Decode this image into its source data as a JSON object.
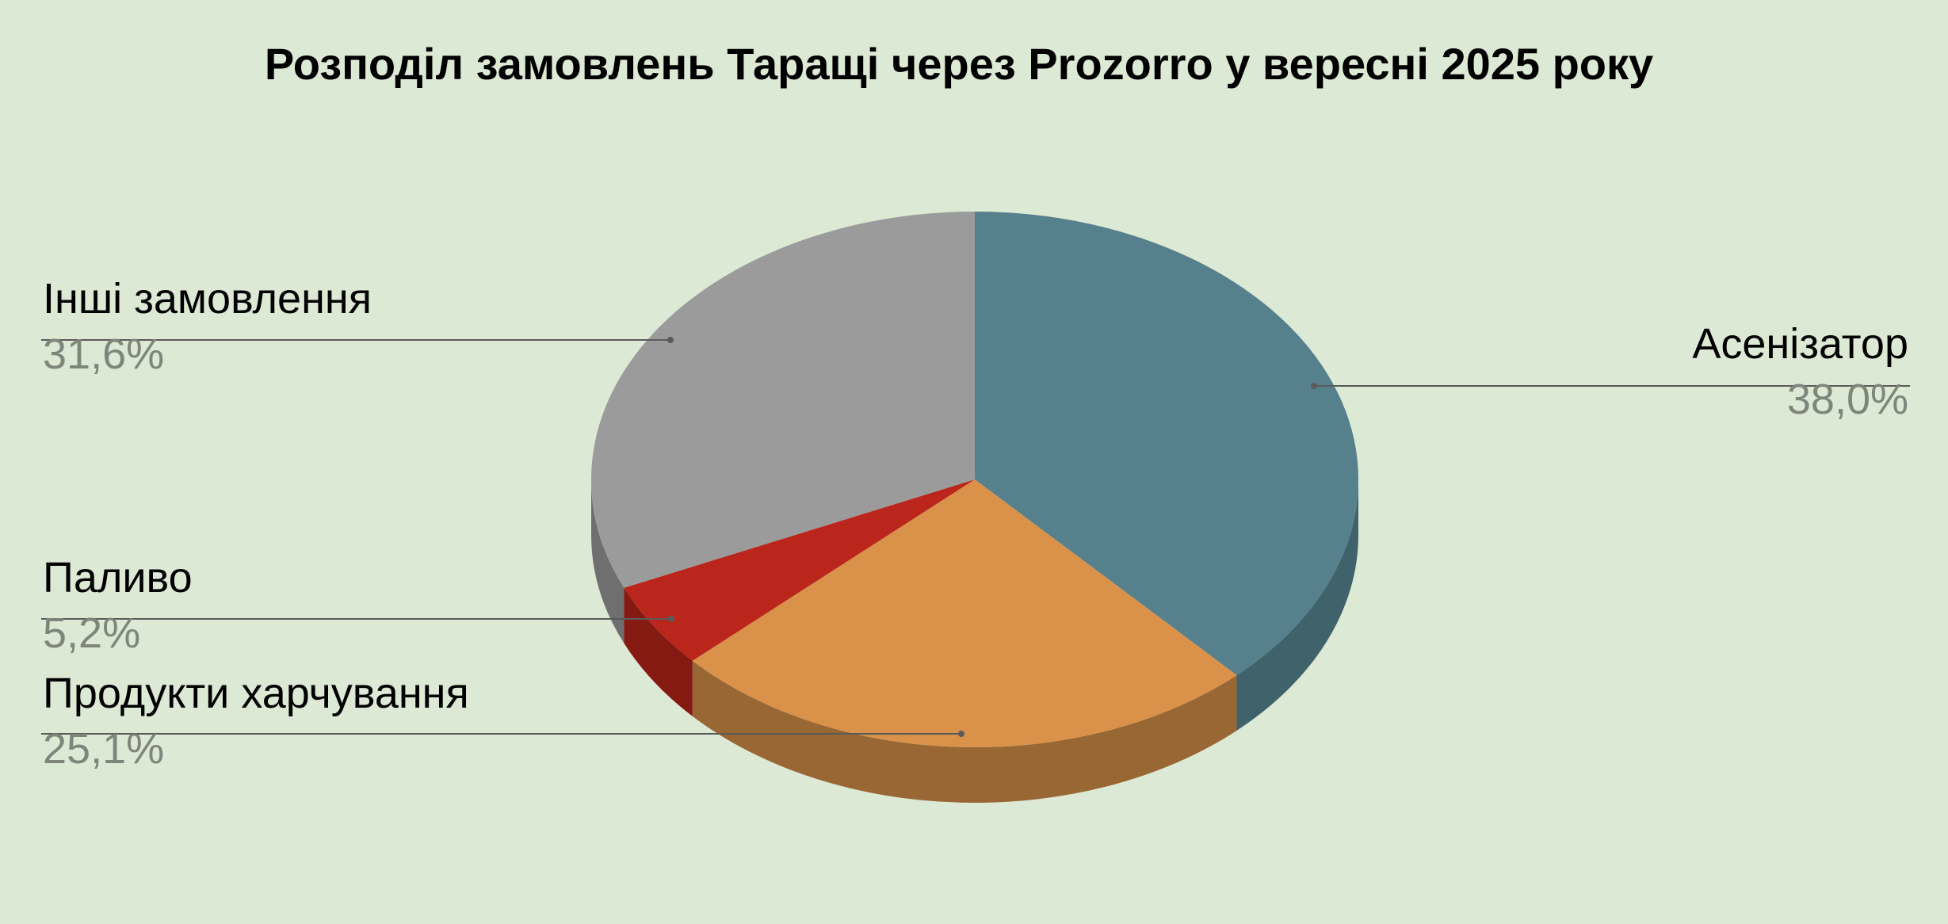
{
  "chart_data": {
    "type": "pie",
    "title": "Розподіл замовлень Таращі через Prozorro у вересні 2025 року",
    "three_d": true,
    "label_style": "outside-with-leader-lines",
    "slices": [
      {
        "label": "Асенізатор",
        "value": 38.0,
        "value_label": "38,0%",
        "color": "#55808c",
        "side_color": "#3f626b"
      },
      {
        "label": "Продукти харчування",
        "value": 25.1,
        "value_label": "25,1%",
        "color": "#da924b",
        "side_color": "#986734"
      },
      {
        "label": "Паливо",
        "value": 5.2,
        "value_label": "5,2%",
        "color": "#bb261c",
        "side_color": "#851a13"
      },
      {
        "label": "Інші замовлення",
        "value": 31.6,
        "value_label": "31,6%",
        "color": "#9b9b9b",
        "side_color": "#6f6f6f"
      }
    ]
  },
  "colors": {
    "background": "#dce9d5",
    "label_text": "#000000",
    "value_text": "#7e857b",
    "leader_line": "#5a5a5a"
  }
}
